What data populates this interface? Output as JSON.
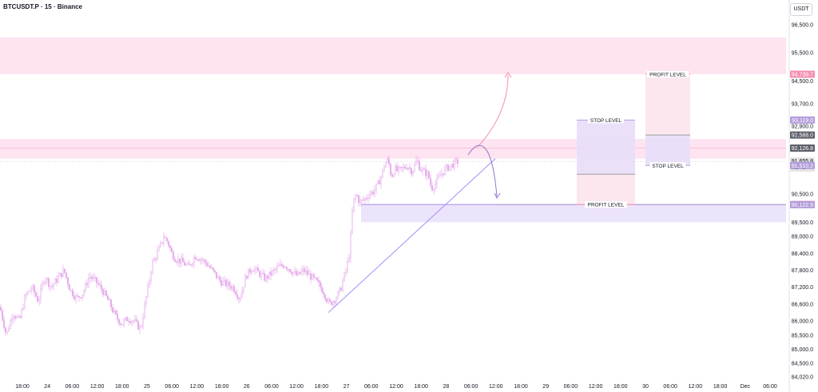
{
  "header": {
    "title": "BTCUSDT.P · 15 · Binance",
    "currency": "USDT"
  },
  "colors": {
    "candle": "#e2a0e8",
    "trendline": "#a78bfa",
    "zone_pink": "#fde4f0",
    "zone_purple": "#ece4fb",
    "profit_label": "#f48fb1",
    "stop_label": "#b39ddb",
    "arrow_pink": "#f48fb1",
    "arrow_purple": "#9575cd"
  },
  "chart_data": {
    "type": "candlestick",
    "symbol": "BTCUSDT.P",
    "interval": "15",
    "exchange": "Binance",
    "ylim": [
      83800,
      97200
    ],
    "y_ticks": [
      "96,500.0",
      "95,500.0",
      "94,500.0",
      "93,700.0",
      "92,900.0",
      "90,500.0",
      "89,500.0",
      "89,000.0",
      "88,400.0",
      "87,800.0",
      "87,200.0",
      "86,600.0",
      "86,000.0",
      "85,500.0",
      "85,000.0",
      "84,500.0",
      "84,020.0"
    ],
    "x_ticks": [
      "18:00",
      "24",
      "06:00",
      "12:00",
      "18:00",
      "25",
      "06:00",
      "12:00",
      "18:00",
      "26",
      "06:00",
      "12:00",
      "18:00",
      "27",
      "06:00",
      "12:00",
      "18:00",
      "28",
      "06:00",
      "12:00",
      "18:00",
      "29",
      "06:00",
      "12:00",
      "18:00",
      "30",
      "06:00",
      "12:00",
      "18:00",
      "Dec",
      "06:00"
    ],
    "price_path": [
      [
        0,
        86500
      ],
      [
        8,
        85500
      ],
      [
        16,
        86300
      ],
      [
        24,
        86000
      ],
      [
        32,
        86900
      ],
      [
        40,
        87200
      ],
      [
        48,
        86700
      ],
      [
        56,
        87600
      ],
      [
        64,
        87200
      ],
      [
        72,
        87500
      ],
      [
        80,
        87800
      ],
      [
        88,
        87100
      ],
      [
        96,
        86800
      ],
      [
        104,
        87000
      ],
      [
        112,
        87600
      ],
      [
        120,
        87400
      ],
      [
        128,
        87100
      ],
      [
        136,
        86700
      ],
      [
        144,
        86200
      ],
      [
        152,
        85900
      ],
      [
        160,
        86100
      ],
      [
        168,
        86000
      ],
      [
        176,
        85700
      ],
      [
        182,
        86700
      ],
      [
        186,
        87300
      ],
      [
        190,
        88000
      ],
      [
        195,
        88300
      ],
      [
        200,
        88600
      ],
      [
        205,
        89000
      ],
      [
        210,
        88800
      ],
      [
        215,
        88400
      ],
      [
        220,
        88200
      ],
      [
        228,
        88100
      ],
      [
        236,
        87900
      ],
      [
        244,
        88300
      ],
      [
        252,
        88200
      ],
      [
        260,
        88000
      ],
      [
        268,
        87700
      ],
      [
        276,
        87400
      ],
      [
        284,
        87300
      ],
      [
        292,
        87200
      ],
      [
        300,
        86800
      ],
      [
        308,
        87600
      ],
      [
        316,
        87900
      ],
      [
        324,
        87700
      ],
      [
        332,
        87500
      ],
      [
        340,
        87700
      ],
      [
        348,
        87900
      ],
      [
        356,
        88000
      ],
      [
        364,
        87800
      ],
      [
        372,
        87600
      ],
      [
        380,
        87800
      ],
      [
        388,
        87600
      ],
      [
        396,
        87400
      ],
      [
        404,
        87100
      ],
      [
        412,
        86600
      ],
      [
        420,
        86800
      ],
      [
        426,
        87100
      ],
      [
        430,
        87500
      ],
      [
        434,
        87900
      ],
      [
        438,
        88500
      ],
      [
        440,
        89500
      ],
      [
        442,
        90200
      ],
      [
        446,
        90500
      ],
      [
        450,
        90200
      ],
      [
        456,
        90300
      ],
      [
        462,
        90500
      ],
      [
        468,
        90600
      ],
      [
        474,
        90900
      ],
      [
        478,
        91200
      ],
      [
        482,
        91600
      ],
      [
        486,
        91700
      ],
      [
        490,
        91100
      ],
      [
        494,
        91400
      ],
      [
        498,
        91300
      ],
      [
        504,
        91400
      ],
      [
        510,
        91500
      ],
      [
        516,
        91300
      ],
      [
        522,
        91700
      ],
      [
        526,
        91400
      ],
      [
        530,
        91300
      ],
      [
        536,
        91200
      ],
      [
        540,
        90700
      ],
      [
        546,
        90900
      ],
      [
        552,
        91200
      ],
      [
        558,
        91400
      ],
      [
        564,
        91500
      ],
      [
        570,
        91600
      ],
      [
        574,
        91655.8
      ]
    ],
    "zones": [
      {
        "name": "upper-resistance-zone",
        "from": 94739.7,
        "to": 96050,
        "color": "#fde4f0"
      },
      {
        "name": "mid-resistance-zone",
        "from": 91750,
        "to": 92450,
        "color": "#fde4f0"
      },
      {
        "name": "demand-zone",
        "from": 89500,
        "to": 90122.9,
        "color": "#ece4fb"
      }
    ],
    "trendline": {
      "from": [
        "27 (18:00)",
        86300
      ],
      "to": [
        "28 (06:00)",
        91750
      ]
    },
    "positions": [
      {
        "type": "short",
        "entry": 91200,
        "stop": 93119.0,
        "profit": 90127.5,
        "stop_label": "STOP LEVEL",
        "profit_label": "PROFIT LEVEL"
      },
      {
        "type": "long",
        "entry": 92588.0,
        "stop": 91510.2,
        "profit": 94739.7,
        "stop_label": "STOP LEVEL",
        "profit_label": "PROFIT LEVEL"
      }
    ],
    "price_labels": [
      {
        "value": "94,739.7",
        "price": 94739.7,
        "bg": "#f48fb1",
        "fg": "#ffffff"
      },
      {
        "value": "93,119.0",
        "price": 93119.0,
        "bg": "#b39ddb",
        "fg": "#ffffff"
      },
      {
        "value": "92,588.0",
        "price": 92588.0,
        "bg": "#5d606b",
        "fg": "#ffffff"
      },
      {
        "value": "92,126.8",
        "price": 92126.8,
        "bg": "#5d606b",
        "fg": "#ffffff"
      },
      {
        "value": "91,655.8",
        "price": 91655.8,
        "bg": "#e6e6e6",
        "fg": "#131722",
        "sub": "02:41"
      },
      {
        "value": "91,510.2",
        "price": 91510.2,
        "bg": "#b39ddb",
        "fg": "#ffffff"
      },
      {
        "value": "90,127.5",
        "price": 90127.5,
        "bg": "#f48fb1",
        "fg": "#ffffff"
      },
      {
        "value": "90,122.9",
        "price": 90122.9,
        "bg": "#b39ddb",
        "fg": "#ffffff"
      }
    ],
    "grid": false
  }
}
